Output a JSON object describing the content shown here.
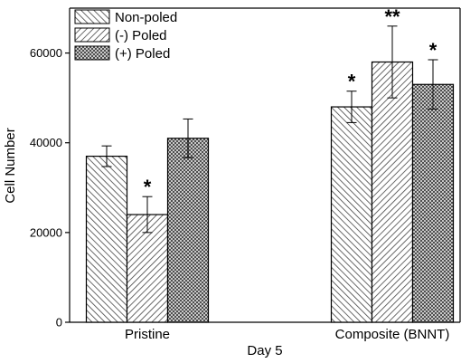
{
  "chart_data": {
    "type": "bar",
    "title": "",
    "xlabel": "Day 5",
    "ylabel": "Cell Number",
    "ylim": [
      0,
      70000
    ],
    "yticks": [
      0,
      20000,
      40000,
      60000
    ],
    "categories": [
      "Pristine",
      "Composite (BNNT)"
    ],
    "series": [
      {
        "name": "Non-poled",
        "values": [
          37000,
          48000
        ],
        "errors": [
          2300,
          3500
        ],
        "significance": [
          "",
          "*"
        ],
        "pattern": "diag-right"
      },
      {
        "name": "(-) Poled",
        "values": [
          24000,
          58000
        ],
        "errors": [
          4000,
          8000
        ],
        "significance": [
          "*",
          "**"
        ],
        "pattern": "diag-left"
      },
      {
        "name": "(+) Poled",
        "values": [
          41000,
          53000
        ],
        "errors": [
          4300,
          5500
        ],
        "significance": [
          "",
          "*"
        ],
        "pattern": "cross"
      }
    ],
    "legend_position": "top-left",
    "grid": false,
    "bar_edge_color": "#000000",
    "bar_fill_color": "#ffffff",
    "hatch_color": "#444444"
  }
}
